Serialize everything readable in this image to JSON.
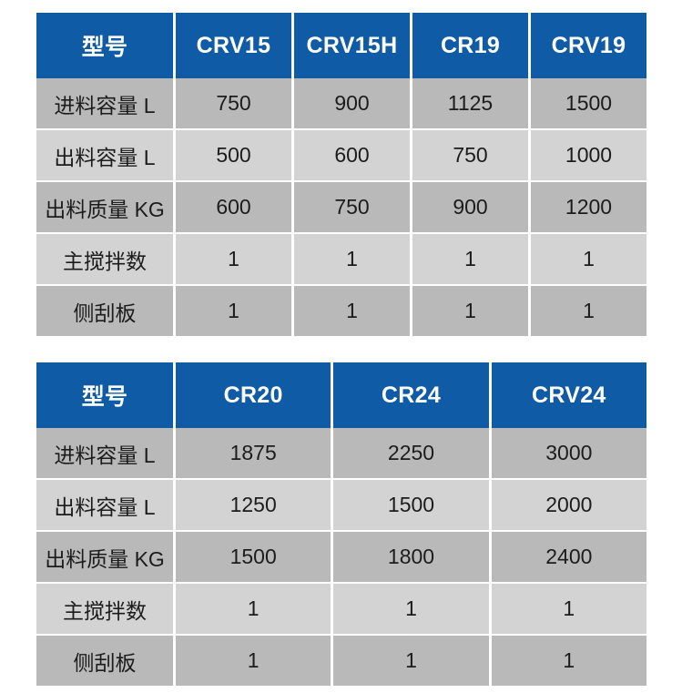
{
  "colors": {
    "header_bg": "#0f5ba6",
    "header_text": "#ffffff",
    "row_dark": "#b9b9b9",
    "row_light": "#d3d3d3",
    "body_text": "#1c1c1c",
    "page_bg": "#ffffff"
  },
  "tables": [
    {
      "header": [
        "型号",
        "CRV15",
        "CRV15H",
        "CR19",
        "CRV19"
      ],
      "rows": [
        {
          "label": "进料容量 L",
          "values": [
            "750",
            "900",
            "1125",
            "1500"
          ]
        },
        {
          "label": "出料容量 L",
          "values": [
            "500",
            "600",
            "750",
            "1000"
          ]
        },
        {
          "label": "出料质量 KG",
          "values": [
            "600",
            "750",
            "900",
            "1200"
          ]
        },
        {
          "label": "主搅拌数",
          "values": [
            "1",
            "1",
            "1",
            "1"
          ]
        },
        {
          "label": "侧刮板",
          "values": [
            "1",
            "1",
            "1",
            "1"
          ]
        }
      ]
    },
    {
      "header": [
        "型号",
        "CR20",
        "CR24",
        "CRV24"
      ],
      "rows": [
        {
          "label": "进料容量 L",
          "values": [
            "1875",
            "2250",
            "3000"
          ]
        },
        {
          "label": "出料容量 L",
          "values": [
            "1250",
            "1500",
            "2000"
          ]
        },
        {
          "label": "出料质量 KG",
          "values": [
            "1500",
            "1800",
            "2400"
          ]
        },
        {
          "label": "主搅拌数",
          "values": [
            "1",
            "1",
            "1"
          ]
        },
        {
          "label": "侧刮板",
          "values": [
            "1",
            "1",
            "1"
          ]
        }
      ]
    }
  ]
}
